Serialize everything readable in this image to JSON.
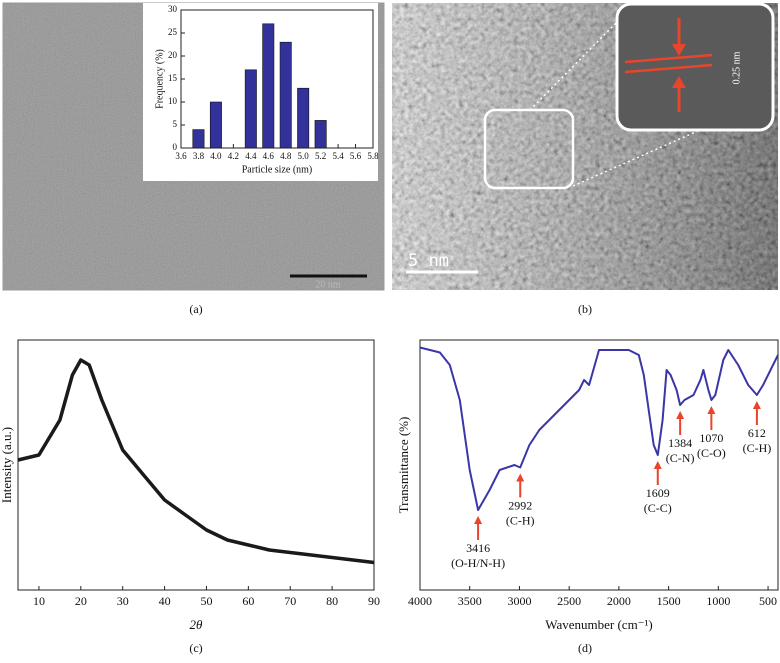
{
  "panels": {
    "labels": [
      "(a)",
      "(b)",
      "(c)",
      "(d)"
    ],
    "scale_bars": [
      "20 nm",
      "5 nm"
    ],
    "lattice_spacing": "0.25 nm"
  },
  "chart_data": [
    {
      "type": "bar",
      "xlabel": "Particle size (nm)",
      "ylabel": "Frequency (%)",
      "color": "#32329a",
      "x": [
        3.8,
        4.0,
        4.2,
        4.4,
        4.6,
        4.8,
        5.0,
        5.2,
        5.4,
        5.6
      ],
      "values": [
        4,
        10,
        0,
        17,
        27,
        23,
        13,
        6,
        0,
        0
      ],
      "xlim": [
        3.6,
        5.8
      ],
      "xticks": [
        3.6,
        3.8,
        {
          "value": 4,
          "label": "4.0"
        },
        4.2,
        4.4,
        4.6,
        4.8,
        {
          "value": 5,
          "label": "5.0"
        },
        5.2,
        5.4,
        5.6,
        5.8
      ],
      "ylim": [
        0,
        30
      ],
      "yticks": [
        0,
        5,
        10,
        15,
        20,
        25,
        30
      ]
    },
    {
      "type": "line",
      "xlabel": "2θ",
      "ylabel": "Intensity (a.u.)",
      "color": "#1a1a1a",
      "x": [
        5,
        10,
        15,
        18,
        20,
        22,
        25,
        30,
        35,
        40,
        45,
        50,
        55,
        60,
        65,
        70,
        80,
        90
      ],
      "values": [
        52,
        54,
        68,
        86,
        92,
        90,
        76,
        56,
        46,
        36,
        30,
        24,
        20,
        18,
        16,
        15,
        13,
        11
      ],
      "xlim": [
        5,
        90
      ],
      "xticks": [
        10,
        20,
        30,
        40,
        50,
        60,
        70,
        80,
        90
      ],
      "ylim": [
        0,
        100
      ]
    },
    {
      "type": "line",
      "xlabel": "Wavenumber (cm⁻¹)",
      "ylabel": "Transmittance (%)",
      "color": "#3a36a8",
      "x": [
        4000,
        3800,
        3700,
        3600,
        3500,
        3416,
        3300,
        3200,
        3050,
        2992,
        2900,
        2800,
        2600,
        2400,
        2350,
        2300,
        2200,
        1900,
        1800,
        1750,
        1700,
        1650,
        1609,
        1560,
        1520,
        1480,
        1420,
        1384,
        1340,
        1250,
        1180,
        1150,
        1100,
        1070,
        1030,
        950,
        900,
        800,
        700,
        612,
        550,
        450,
        400
      ],
      "values": [
        97,
        95,
        90,
        76,
        48,
        32,
        40,
        48,
        50,
        49,
        58,
        64,
        72,
        80,
        84,
        82,
        96,
        96,
        94,
        86,
        72,
        58,
        54,
        68,
        88,
        86,
        80,
        74,
        76,
        78,
        84,
        88,
        80,
        76,
        78,
        92,
        96,
        90,
        82,
        78,
        82,
        90,
        94
      ],
      "xlim": [
        4000,
        400
      ],
      "xticks": [
        4000,
        3500,
        3000,
        2500,
        2000,
        1500,
        1000,
        500
      ],
      "ylim": [
        0,
        100
      ],
      "annotations": [
        {
          "x": 3416,
          "label": "(O-H/N-H)"
        },
        {
          "x": 2992,
          "label": "(C-H)"
        },
        {
          "x": 1609,
          "label": "(C-C)"
        },
        {
          "x": 1384,
          "label": "(C-N)"
        },
        {
          "x": 1070,
          "label": "(C-O)"
        },
        {
          "x": 612,
          "label": "(C-H)"
        }
      ]
    }
  ]
}
